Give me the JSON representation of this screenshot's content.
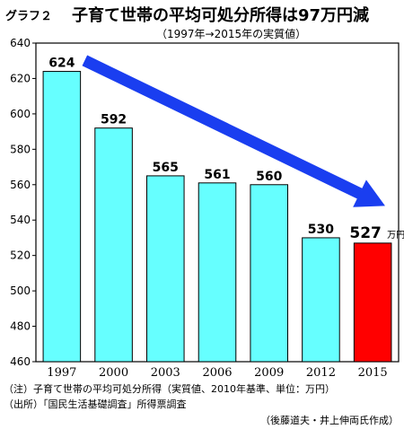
{
  "figure_label": "グラフ２",
  "chart_data": {
    "type": "bar",
    "title": "子育て世帯の平均可処分所得は97万円減",
    "subtitle": "（1997年→2015年の実質値）",
    "categories": [
      "1997",
      "2000",
      "2003",
      "2006",
      "2009",
      "2012",
      "2015"
    ],
    "values": [
      624,
      592,
      565,
      561,
      560,
      530,
      527
    ],
    "data_labels": [
      "624",
      "592",
      "565",
      "561",
      "560",
      "530",
      "527"
    ],
    "last_label_unit": "万円",
    "ylim": [
      460,
      640
    ],
    "yticks": [
      460,
      480,
      500,
      520,
      540,
      560,
      580,
      600,
      620,
      640
    ],
    "xlabel": "",
    "ylabel": "",
    "grid": false,
    "colors": {
      "bar": "#66ffff",
      "highlight": "#ff0000",
      "arrow": "#1a3ef0",
      "bar_border": "#000000"
    },
    "annotations": [
      {
        "type": "arrow",
        "from": "1997",
        "to": "2015",
        "meaning": "downward trend"
      }
    ]
  },
  "notes": {
    "note1": "（注）子育て世帯の平均可処分所得（実質値、2010年基準、単位：万円）",
    "note2": "（出所）「国民生活基礎調査」所得票調査"
  },
  "credit": "（後藤道夫・井上伸両氏作成）"
}
